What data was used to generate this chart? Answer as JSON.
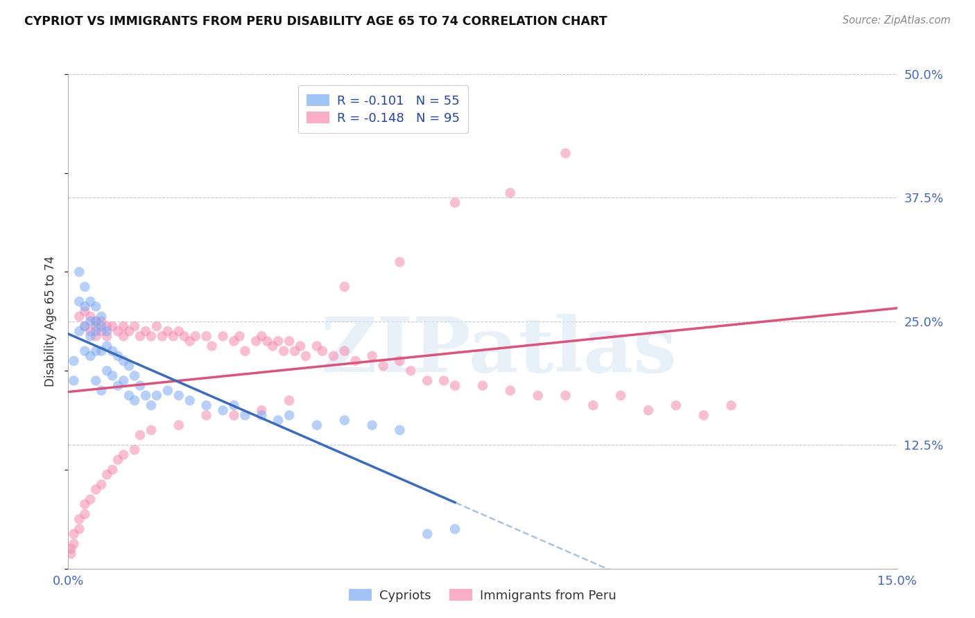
{
  "title": "CYPRIOT VS IMMIGRANTS FROM PERU DISABILITY AGE 65 TO 74 CORRELATION CHART",
  "source": "Source: ZipAtlas.com",
  "ylabel": "Disability Age 65 to 74",
  "xlim": [
    0.0,
    0.15
  ],
  "ylim": [
    0.0,
    0.5
  ],
  "cypriot_color": "#7aabf7",
  "peru_color": "#f78ab0",
  "cypriot_line_color": "#3a6bbf",
  "peru_line_color": "#e0507a",
  "dashed_line_color": "#a0bce0",
  "watermark_text": "ZIPatlas",
  "legend_r_cypriot": "R = -0.101",
  "legend_n_cypriot": "N = 55",
  "legend_r_peru": "R = -0.148",
  "legend_n_peru": "N = 95",
  "legend_name_cypriot": "Cypriots",
  "legend_name_peru": "Immigrants from Peru",
  "cypriot_x": [
    0.001,
    0.001,
    0.002,
    0.002,
    0.002,
    0.003,
    0.003,
    0.003,
    0.003,
    0.004,
    0.004,
    0.004,
    0.004,
    0.005,
    0.005,
    0.005,
    0.005,
    0.005,
    0.006,
    0.006,
    0.006,
    0.006,
    0.007,
    0.007,
    0.007,
    0.008,
    0.008,
    0.009,
    0.009,
    0.01,
    0.01,
    0.011,
    0.011,
    0.012,
    0.012,
    0.013,
    0.014,
    0.015,
    0.016,
    0.018,
    0.02,
    0.022,
    0.025,
    0.028,
    0.03,
    0.032,
    0.035,
    0.038,
    0.04,
    0.045,
    0.05,
    0.055,
    0.06,
    0.065,
    0.07
  ],
  "cypriot_y": [
    0.21,
    0.19,
    0.3,
    0.27,
    0.24,
    0.285,
    0.265,
    0.245,
    0.22,
    0.27,
    0.25,
    0.235,
    0.215,
    0.265,
    0.25,
    0.24,
    0.22,
    0.19,
    0.255,
    0.245,
    0.22,
    0.18,
    0.24,
    0.225,
    0.2,
    0.22,
    0.195,
    0.215,
    0.185,
    0.21,
    0.19,
    0.205,
    0.175,
    0.195,
    0.17,
    0.185,
    0.175,
    0.165,
    0.175,
    0.18,
    0.175,
    0.17,
    0.165,
    0.16,
    0.165,
    0.155,
    0.155,
    0.15,
    0.155,
    0.145,
    0.15,
    0.145,
    0.14,
    0.035,
    0.04
  ],
  "peru_x": [
    0.002,
    0.003,
    0.003,
    0.004,
    0.004,
    0.005,
    0.005,
    0.005,
    0.006,
    0.006,
    0.007,
    0.007,
    0.008,
    0.009,
    0.01,
    0.01,
    0.011,
    0.012,
    0.013,
    0.014,
    0.015,
    0.016,
    0.017,
    0.018,
    0.019,
    0.02,
    0.021,
    0.022,
    0.023,
    0.025,
    0.026,
    0.028,
    0.03,
    0.031,
    0.032,
    0.034,
    0.035,
    0.036,
    0.037,
    0.038,
    0.039,
    0.04,
    0.041,
    0.042,
    0.043,
    0.045,
    0.046,
    0.048,
    0.05,
    0.052,
    0.055,
    0.057,
    0.06,
    0.062,
    0.065,
    0.068,
    0.07,
    0.075,
    0.08,
    0.085,
    0.09,
    0.095,
    0.1,
    0.105,
    0.11,
    0.115,
    0.12,
    0.09,
    0.08,
    0.07,
    0.06,
    0.05,
    0.04,
    0.035,
    0.03,
    0.025,
    0.02,
    0.015,
    0.013,
    0.012,
    0.01,
    0.009,
    0.008,
    0.007,
    0.006,
    0.005,
    0.004,
    0.003,
    0.003,
    0.002,
    0.002,
    0.001,
    0.001,
    0.0005,
    0.0005
  ],
  "peru_y": [
    0.255,
    0.26,
    0.245,
    0.255,
    0.24,
    0.25,
    0.245,
    0.235,
    0.25,
    0.24,
    0.245,
    0.235,
    0.245,
    0.24,
    0.245,
    0.235,
    0.24,
    0.245,
    0.235,
    0.24,
    0.235,
    0.245,
    0.235,
    0.24,
    0.235,
    0.24,
    0.235,
    0.23,
    0.235,
    0.235,
    0.225,
    0.235,
    0.23,
    0.235,
    0.22,
    0.23,
    0.235,
    0.23,
    0.225,
    0.23,
    0.22,
    0.23,
    0.22,
    0.225,
    0.215,
    0.225,
    0.22,
    0.215,
    0.22,
    0.21,
    0.215,
    0.205,
    0.21,
    0.2,
    0.19,
    0.19,
    0.185,
    0.185,
    0.18,
    0.175,
    0.175,
    0.165,
    0.175,
    0.16,
    0.165,
    0.155,
    0.165,
    0.42,
    0.38,
    0.37,
    0.31,
    0.285,
    0.17,
    0.16,
    0.155,
    0.155,
    0.145,
    0.14,
    0.135,
    0.12,
    0.115,
    0.11,
    0.1,
    0.095,
    0.085,
    0.08,
    0.07,
    0.065,
    0.055,
    0.05,
    0.04,
    0.035,
    0.025,
    0.02,
    0.015
  ]
}
